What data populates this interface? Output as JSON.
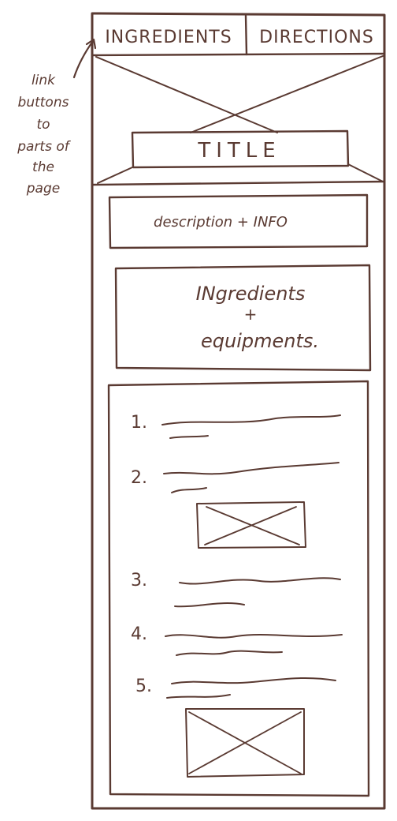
{
  "annotation": {
    "lines": [
      "link",
      "buttons",
      "to",
      "parts of",
      "the",
      "page"
    ]
  },
  "nav": {
    "ingredients_label": "INGREDIENTS",
    "directions_label": "DIRECTIONS"
  },
  "hero": {
    "title": "TITLE"
  },
  "description": {
    "label": "description + INFO"
  },
  "ingredients": {
    "line1": "INgredients",
    "line2": "+",
    "line3": "equipments."
  },
  "steps": {
    "numbers": [
      "1.",
      "2.",
      "3.",
      "4.",
      "5."
    ]
  },
  "colors": {
    "ink": "#5a3a32",
    "paper": "#ffffff"
  }
}
